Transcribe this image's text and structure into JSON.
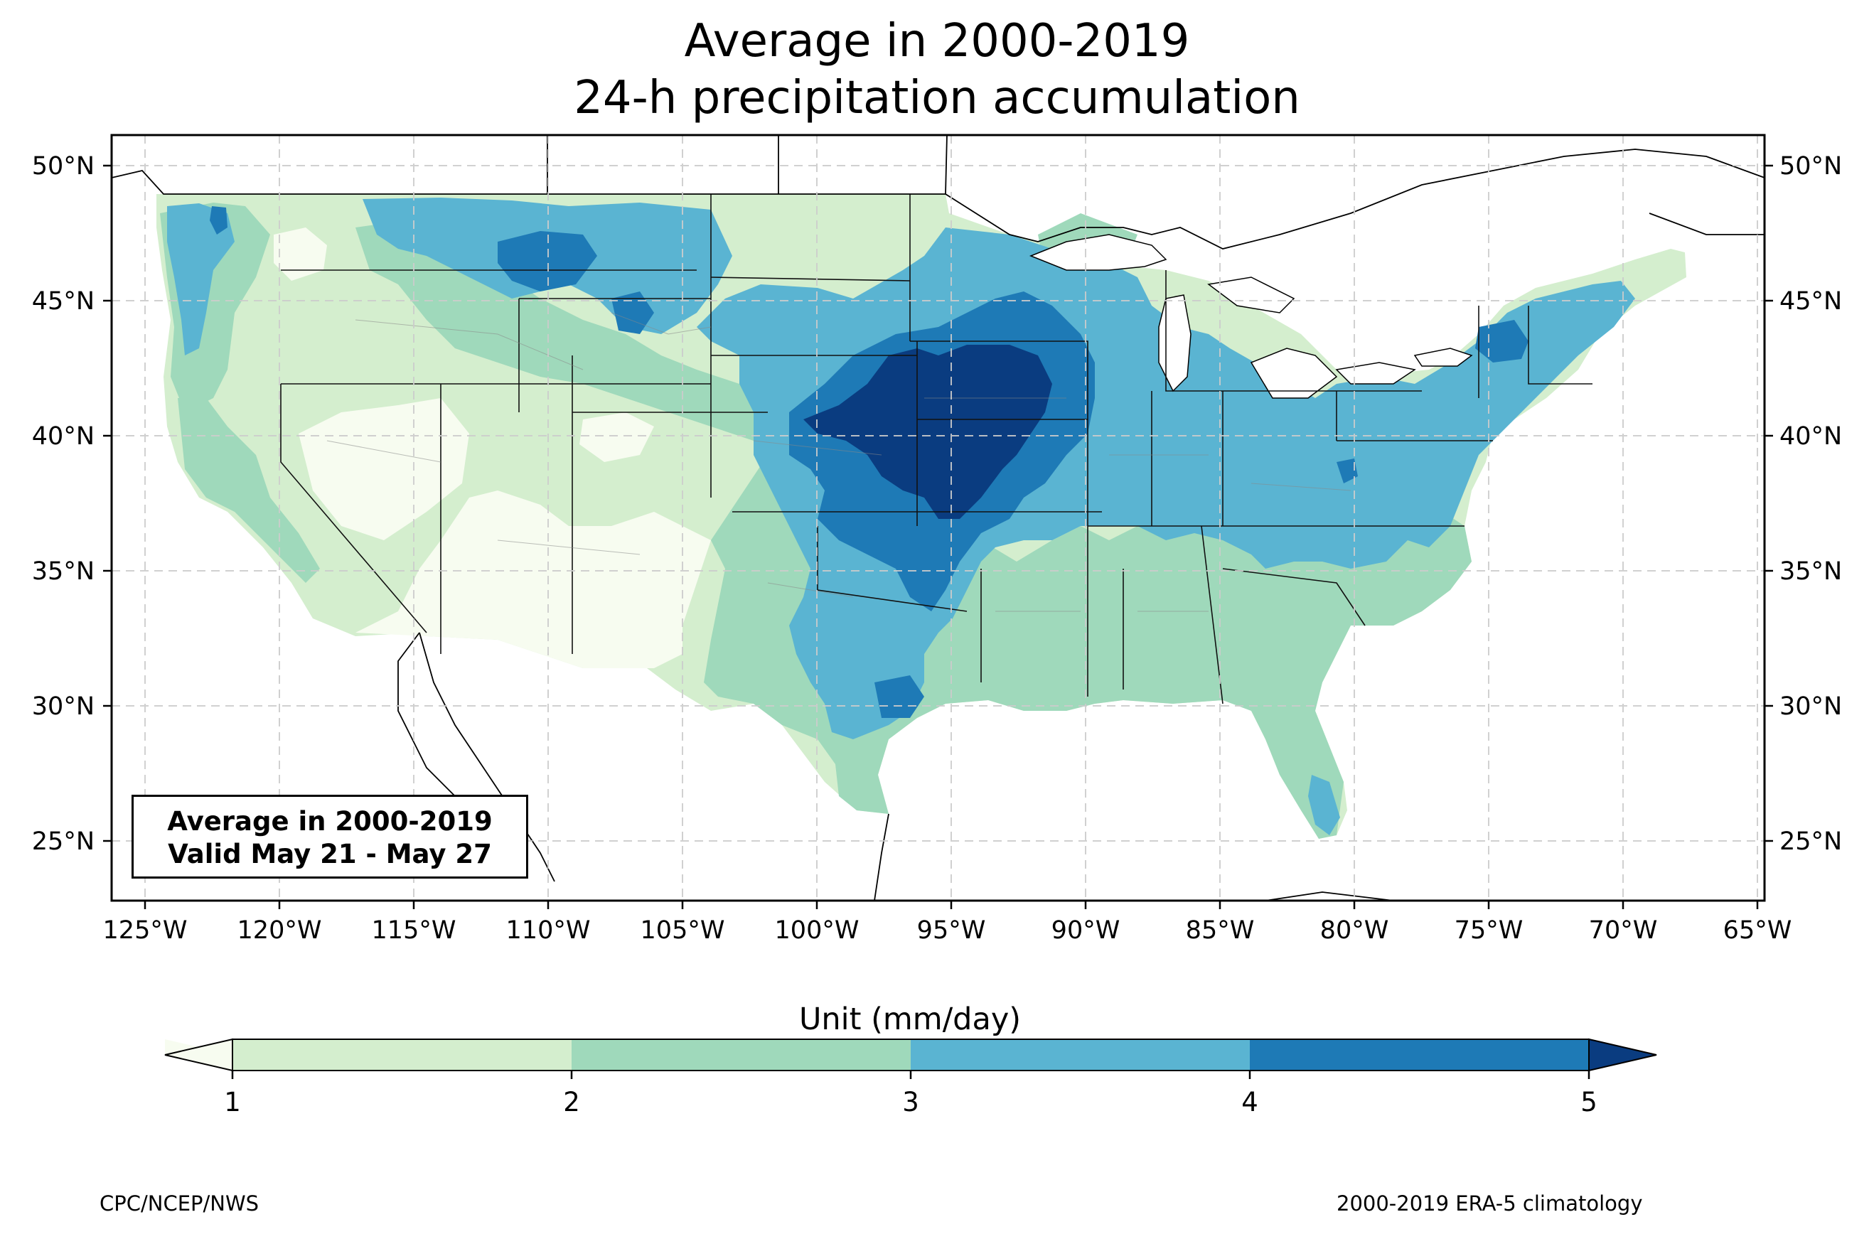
{
  "title": {
    "line1": "Average in 2000-2019",
    "line2": "24-h precipitation accumulation"
  },
  "map": {
    "projection": "Plate Carree",
    "extent": {
      "lon": [
        -126.3,
        -64.8
      ],
      "lat": [
        22.7,
        51.2
      ]
    },
    "lon_ticks": [
      "125°W",
      "120°W",
      "115°W",
      "110°W",
      "105°W",
      "100°W",
      "95°W",
      "90°W",
      "85°W",
      "80°W",
      "75°W",
      "70°W",
      "65°W"
    ],
    "lat_ticks_left": [
      "50°N",
      "45°N",
      "40°N",
      "35°N",
      "30°N",
      "25°N"
    ],
    "lat_ticks_right": [
      "50°N",
      "45°N",
      "40°N",
      "35°N",
      "30°N",
      "25°N"
    ],
    "gridlines": true
  },
  "inset": {
    "line1": "Average in 2000-2019",
    "line2": "Valid May 21 - May 27"
  },
  "colorbar": {
    "title": "Unit (mm/day)",
    "ticks": [
      "1",
      "2",
      "3",
      "4",
      "5"
    ],
    "levels": [
      1,
      2,
      3,
      4,
      5
    ],
    "colors": {
      "below_1": "#f7fcf0",
      "1_2": "#d4eece",
      "2_3": "#9fd9bb",
      "3_4": "#5ab4d2",
      "4_5": "#1e7ab6",
      "above_5": "#0a3c80"
    },
    "extend": "both"
  },
  "footer": {
    "left": "CPC/NCEP/NWS",
    "right": "2000-2019 ERA-5 climatology"
  },
  "fields": {
    "background": {
      "level": "1_2"
    },
    "regions": [
      {
        "name": "southwest-dry",
        "level": "below_1"
      },
      {
        "name": "great-basin-dry",
        "level": "below_1"
      },
      {
        "name": "idaho-dry",
        "level": "below_1"
      },
      {
        "name": "southern-plains",
        "level": "2_3"
      },
      {
        "name": "southeast",
        "level": "2_3"
      },
      {
        "name": "pacific-nw",
        "level": "2_3"
      },
      {
        "name": "california-coast",
        "level": "2_3"
      },
      {
        "name": "plains-wet",
        "level": "3_4"
      },
      {
        "name": "northern-rockies",
        "level": "3_4"
      },
      {
        "name": "ohio-valley",
        "level": "3_4"
      },
      {
        "name": "northeast",
        "level": "3_4"
      },
      {
        "name": "florida-south",
        "level": "3_4"
      },
      {
        "name": "central-core",
        "level": "4_5"
      },
      {
        "name": "montana-core",
        "level": "4_5"
      },
      {
        "name": "texas-core",
        "level": "4_5"
      },
      {
        "name": "nw-washington",
        "level": "4_5"
      },
      {
        "name": "new-york-core",
        "level": "4_5"
      },
      {
        "name": "central-max",
        "level": "above_5"
      }
    ]
  }
}
